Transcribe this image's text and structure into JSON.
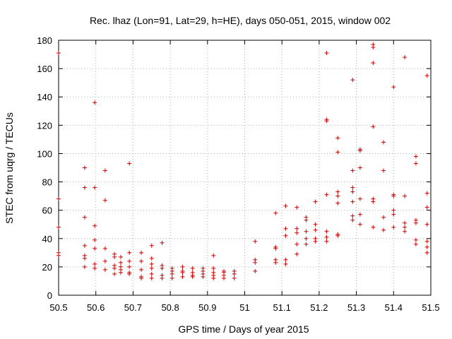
{
  "chart_data": {
    "type": "scatter",
    "title": "Rec. lhaz (Lon=91, Lat=29, h=HE), days 050-051, 2015, window 002",
    "xlabel": "GPS time / Days of year 2015",
    "ylabel": "STEC from uqrg / TECUs",
    "xlim": [
      50.5,
      51.5
    ],
    "ylim": [
      0,
      180
    ],
    "xticks": [
      "50.5",
      "50.6",
      "50.7",
      "50.8",
      "50.9",
      "51",
      "51.1",
      "51.2",
      "51.3",
      "51.4",
      "51.5"
    ],
    "yticks": [
      "0",
      "20",
      "40",
      "60",
      "80",
      "100",
      "120",
      "140",
      "160",
      "180"
    ],
    "grid": true,
    "marker": "+",
    "marker_color": "#cc0000",
    "points": [
      [
        50.5,
        171
      ],
      [
        50.5,
        68
      ],
      [
        50.5,
        48
      ],
      [
        50.5,
        30
      ],
      [
        50.5,
        28
      ],
      [
        50.57,
        90
      ],
      [
        50.57,
        76
      ],
      [
        50.57,
        55
      ],
      [
        50.57,
        35
      ],
      [
        50.57,
        28
      ],
      [
        50.57,
        26
      ],
      [
        50.57,
        20
      ],
      [
        50.597,
        136
      ],
      [
        50.597,
        76
      ],
      [
        50.597,
        49
      ],
      [
        50.597,
        39
      ],
      [
        50.597,
        33
      ],
      [
        50.597,
        22
      ],
      [
        50.597,
        19
      ],
      [
        50.625,
        88
      ],
      [
        50.625,
        67
      ],
      [
        50.625,
        33
      ],
      [
        50.625,
        24
      ],
      [
        50.625,
        18
      ],
      [
        50.65,
        29
      ],
      [
        50.65,
        27
      ],
      [
        50.65,
        21
      ],
      [
        50.65,
        19
      ],
      [
        50.65,
        15
      ],
      [
        50.667,
        27
      ],
      [
        50.667,
        23
      ],
      [
        50.667,
        20
      ],
      [
        50.667,
        18
      ],
      [
        50.667,
        16
      ],
      [
        50.69,
        93
      ],
      [
        50.69,
        30
      ],
      [
        50.69,
        24
      ],
      [
        50.69,
        20
      ],
      [
        50.69,
        16
      ],
      [
        50.69,
        15
      ],
      [
        50.722,
        30
      ],
      [
        50.722,
        24
      ],
      [
        50.722,
        18
      ],
      [
        50.722,
        13
      ],
      [
        50.722,
        12
      ],
      [
        50.75,
        35
      ],
      [
        50.75,
        26
      ],
      [
        50.75,
        22
      ],
      [
        50.75,
        19
      ],
      [
        50.75,
        15
      ],
      [
        50.75,
        12
      ],
      [
        50.778,
        37
      ],
      [
        50.778,
        21
      ],
      [
        50.778,
        19
      ],
      [
        50.778,
        14
      ],
      [
        50.778,
        12
      ],
      [
        50.805,
        19
      ],
      [
        50.805,
        17
      ],
      [
        50.805,
        15
      ],
      [
        50.805,
        12
      ],
      [
        50.833,
        20
      ],
      [
        50.833,
        17
      ],
      [
        50.833,
        16
      ],
      [
        50.833,
        13
      ],
      [
        50.86,
        19
      ],
      [
        50.86,
        16
      ],
      [
        50.86,
        14
      ],
      [
        50.86,
        13
      ],
      [
        50.888,
        19
      ],
      [
        50.888,
        17
      ],
      [
        50.888,
        15
      ],
      [
        50.888,
        13
      ],
      [
        50.916,
        28
      ],
      [
        50.916,
        19
      ],
      [
        50.916,
        16
      ],
      [
        50.916,
        14
      ],
      [
        50.916,
        12
      ],
      [
        50.944,
        17
      ],
      [
        50.944,
        16
      ],
      [
        50.944,
        14
      ],
      [
        50.944,
        12
      ],
      [
        50.972,
        17
      ],
      [
        50.972,
        15
      ],
      [
        50.972,
        12
      ],
      [
        51.028,
        38
      ],
      [
        51.028,
        25
      ],
      [
        51.028,
        23
      ],
      [
        51.028,
        17
      ],
      [
        51.083,
        58
      ],
      [
        51.083,
        34
      ],
      [
        51.083,
        33
      ],
      [
        51.083,
        25
      ],
      [
        51.083,
        23
      ],
      [
        51.11,
        63
      ],
      [
        51.11,
        47
      ],
      [
        51.11,
        42
      ],
      [
        51.11,
        25
      ],
      [
        51.11,
        22
      ],
      [
        51.14,
        62
      ],
      [
        51.14,
        47
      ],
      [
        51.14,
        44
      ],
      [
        51.14,
        36
      ],
      [
        51.14,
        29
      ],
      [
        51.165,
        55
      ],
      [
        51.165,
        53
      ],
      [
        51.165,
        45
      ],
      [
        51.165,
        40
      ],
      [
        51.165,
        36
      ],
      [
        51.19,
        66
      ],
      [
        51.19,
        50
      ],
      [
        51.19,
        46
      ],
      [
        51.19,
        40
      ],
      [
        51.19,
        38
      ],
      [
        51.22,
        171
      ],
      [
        51.22,
        124
      ],
      [
        51.22,
        123
      ],
      [
        51.22,
        71
      ],
      [
        51.22,
        45
      ],
      [
        51.22,
        41
      ],
      [
        51.22,
        38
      ],
      [
        51.25,
        111
      ],
      [
        51.25,
        101
      ],
      [
        51.25,
        73
      ],
      [
        51.25,
        70
      ],
      [
        51.25,
        65
      ],
      [
        51.25,
        43
      ],
      [
        51.25,
        42
      ],
      [
        51.29,
        152
      ],
      [
        51.29,
        88
      ],
      [
        51.29,
        76
      ],
      [
        51.29,
        73
      ],
      [
        51.29,
        66
      ],
      [
        51.29,
        56
      ],
      [
        51.29,
        53
      ],
      [
        51.31,
        103
      ],
      [
        51.31,
        102
      ],
      [
        51.31,
        90
      ],
      [
        51.31,
        68
      ],
      [
        51.31,
        57
      ],
      [
        51.31,
        50
      ],
      [
        51.345,
        177
      ],
      [
        51.345,
        175
      ],
      [
        51.345,
        164
      ],
      [
        51.345,
        119
      ],
      [
        51.345,
        68
      ],
      [
        51.345,
        66
      ],
      [
        51.345,
        48
      ],
      [
        51.373,
        108
      ],
      [
        51.373,
        88
      ],
      [
        51.373,
        55
      ],
      [
        51.373,
        46
      ],
      [
        51.4,
        147
      ],
      [
        51.4,
        71
      ],
      [
        51.4,
        70
      ],
      [
        51.4,
        60
      ],
      [
        51.4,
        57
      ],
      [
        51.4,
        48
      ],
      [
        51.43,
        168
      ],
      [
        51.43,
        70
      ],
      [
        51.43,
        51
      ],
      [
        51.43,
        48
      ],
      [
        51.43,
        45
      ],
      [
        51.46,
        98
      ],
      [
        51.46,
        93
      ],
      [
        51.46,
        53
      ],
      [
        51.46,
        51
      ],
      [
        51.46,
        39
      ],
      [
        51.46,
        36
      ],
      [
        51.49,
        155
      ],
      [
        51.49,
        72
      ],
      [
        51.49,
        62
      ],
      [
        51.49,
        50
      ],
      [
        51.49,
        38
      ],
      [
        51.49,
        34
      ],
      [
        51.49,
        30
      ]
    ]
  }
}
